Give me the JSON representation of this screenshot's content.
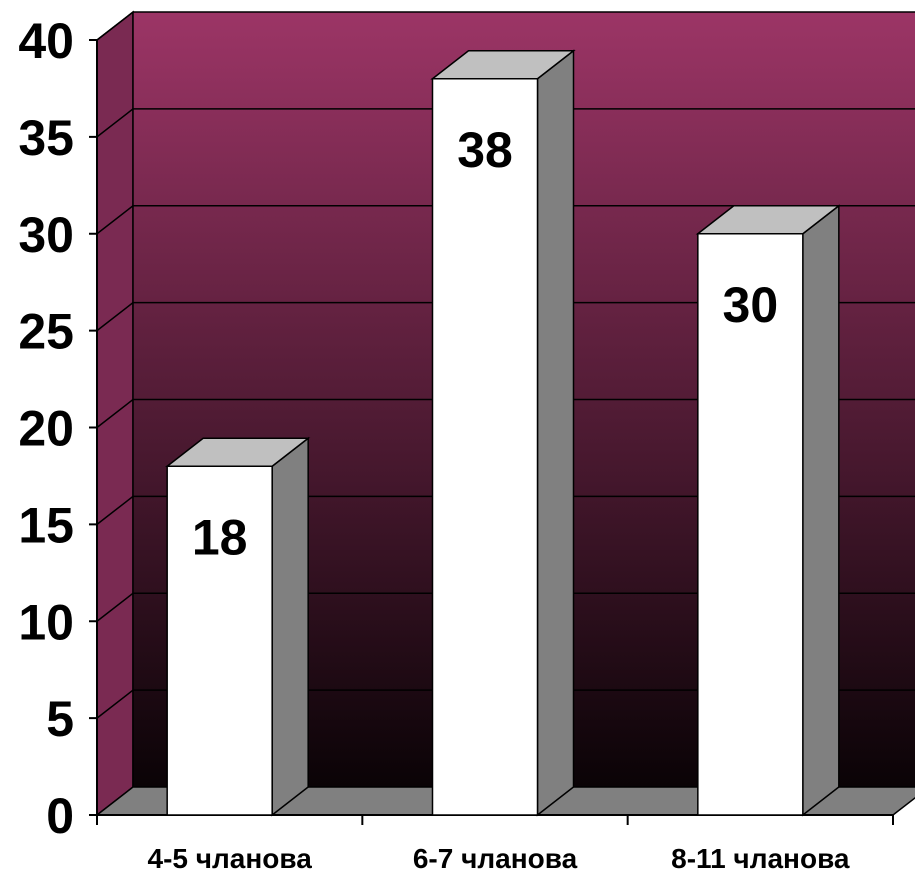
{
  "chart_data": {
    "type": "bar",
    "style": "3d-column",
    "categories": [
      "4-5 чланова",
      "6-7 чланова",
      "8-11 чланова"
    ],
    "values": [
      18,
      38,
      30
    ],
    "data_labels": [
      "18",
      "38",
      "30"
    ],
    "ylim": [
      0,
      40
    ],
    "y_ticks": [
      "0",
      "5",
      "10",
      "15",
      "20",
      "25",
      "30",
      "35",
      "40"
    ],
    "grid": true,
    "legend": "none",
    "colors": {
      "wall_top": "#9c3566",
      "wall_bottom": "#0a0306",
      "floor": "#808080",
      "bar_front": "#ffffff",
      "bar_side": "#808080",
      "bar_top": "#c0c0c0",
      "gridline": "#000000"
    }
  }
}
